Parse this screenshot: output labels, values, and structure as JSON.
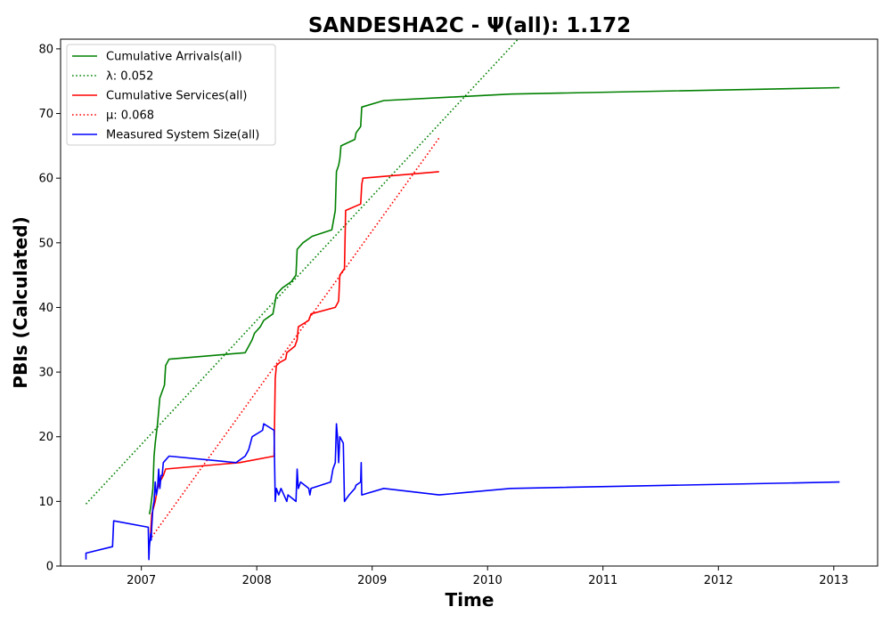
{
  "chart_data": {
    "type": "line",
    "title": "SANDESHA2C -  Ψ(all): 1.172",
    "xlabel": "Time",
    "ylabel": "PBIs (Calculated)",
    "xlim": [
      2006.3,
      2013.38
    ],
    "ylim": [
      0,
      81.5
    ],
    "xticks": [
      2007,
      2008,
      2009,
      2010,
      2011,
      2012,
      2013
    ],
    "yticks": [
      0,
      10,
      20,
      30,
      40,
      50,
      60,
      70,
      80
    ],
    "grid": false,
    "legend_position": "top-left",
    "series": [
      {
        "name": "Cumulative Arrivals(all)",
        "color": "#008000",
        "style": "solid",
        "points": [
          [
            2007.07,
            8
          ],
          [
            2007.08,
            9
          ],
          [
            2007.1,
            12
          ],
          [
            2007.11,
            17
          ],
          [
            2007.12,
            19
          ],
          [
            2007.14,
            22
          ],
          [
            2007.15,
            24
          ],
          [
            2007.16,
            26
          ],
          [
            2007.18,
            27
          ],
          [
            2007.2,
            28
          ],
          [
            2007.21,
            31
          ],
          [
            2007.24,
            32
          ],
          [
            2007.9,
            33
          ],
          [
            2007.93,
            34
          ],
          [
            2007.96,
            35
          ],
          [
            2007.98,
            36
          ],
          [
            2008.03,
            37
          ],
          [
            2008.06,
            38
          ],
          [
            2008.14,
            39
          ],
          [
            2008.15,
            40
          ],
          [
            2008.16,
            41
          ],
          [
            2008.17,
            42
          ],
          [
            2008.22,
            43
          ],
          [
            2008.3,
            44
          ],
          [
            2008.34,
            45
          ],
          [
            2008.35,
            49
          ],
          [
            2008.4,
            50
          ],
          [
            2008.48,
            51
          ],
          [
            2008.65,
            52
          ],
          [
            2008.67,
            54
          ],
          [
            2008.68,
            55
          ],
          [
            2008.69,
            61
          ],
          [
            2008.71,
            62
          ],
          [
            2008.72,
            63
          ],
          [
            2008.73,
            65
          ],
          [
            2008.85,
            66
          ],
          [
            2008.86,
            67
          ],
          [
            2008.9,
            68
          ],
          [
            2008.91,
            71
          ],
          [
            2009.1,
            72
          ],
          [
            2010.2,
            73
          ],
          [
            2013.05,
            74
          ]
        ]
      },
      {
        "name": "λ: 0.052",
        "color": "#008000",
        "style": "dotted",
        "points": [
          [
            2006.52,
            9.6
          ],
          [
            2010.29,
            82
          ]
        ]
      },
      {
        "name": "Cumulative Services(all)",
        "color": "#ff0000",
        "style": "solid",
        "points": [
          [
            2007.08,
            5
          ],
          [
            2007.09,
            8
          ],
          [
            2007.12,
            10
          ],
          [
            2007.14,
            12
          ],
          [
            2007.16,
            13
          ],
          [
            2007.19,
            14
          ],
          [
            2007.21,
            15
          ],
          [
            2007.85,
            16
          ],
          [
            2008.15,
            17
          ],
          [
            2008.16,
            29
          ],
          [
            2008.17,
            31
          ],
          [
            2008.2,
            31.5
          ],
          [
            2008.25,
            32
          ],
          [
            2008.26,
            33
          ],
          [
            2008.33,
            34
          ],
          [
            2008.35,
            35
          ],
          [
            2008.36,
            37
          ],
          [
            2008.45,
            38
          ],
          [
            2008.47,
            39
          ],
          [
            2008.68,
            40
          ],
          [
            2008.71,
            41
          ],
          [
            2008.72,
            45
          ],
          [
            2008.76,
            46
          ],
          [
            2008.77,
            55
          ],
          [
            2008.9,
            56
          ],
          [
            2008.91,
            59
          ],
          [
            2008.92,
            60
          ],
          [
            2009.58,
            61
          ]
        ]
      },
      {
        "name": "μ: 0.068",
        "color": "#ff0000",
        "style": "dotted",
        "points": [
          [
            2007.09,
            4.5
          ],
          [
            2009.58,
            66.2
          ]
        ]
      },
      {
        "name": "Measured System Size(all)",
        "color": "#0000ff",
        "style": "solid",
        "points": [
          [
            2006.52,
            1
          ],
          [
            2006.52,
            2
          ],
          [
            2006.75,
            3
          ],
          [
            2006.76,
            7
          ],
          [
            2007.06,
            6
          ],
          [
            2007.065,
            1
          ],
          [
            2007.07,
            3
          ],
          [
            2007.075,
            4
          ],
          [
            2007.08,
            5
          ],
          [
            2007.085,
            4
          ],
          [
            2007.09,
            6
          ],
          [
            2007.1,
            9
          ],
          [
            2007.11,
            10
          ],
          [
            2007.12,
            13
          ],
          [
            2007.13,
            11
          ],
          [
            2007.14,
            12
          ],
          [
            2007.15,
            15
          ],
          [
            2007.16,
            12
          ],
          [
            2007.17,
            14
          ],
          [
            2007.18,
            14
          ],
          [
            2007.19,
            16
          ],
          [
            2007.24,
            17
          ],
          [
            2007.82,
            16
          ],
          [
            2007.9,
            17
          ],
          [
            2007.93,
            18
          ],
          [
            2007.96,
            20
          ],
          [
            2008.05,
            21
          ],
          [
            2008.06,
            22
          ],
          [
            2008.15,
            21
          ],
          [
            2008.16,
            10
          ],
          [
            2008.17,
            12
          ],
          [
            2008.19,
            11
          ],
          [
            2008.21,
            12
          ],
          [
            2008.26,
            10
          ],
          [
            2008.27,
            11
          ],
          [
            2008.34,
            10
          ],
          [
            2008.35,
            15
          ],
          [
            2008.36,
            12
          ],
          [
            2008.38,
            13
          ],
          [
            2008.45,
            12
          ],
          [
            2008.46,
            11
          ],
          [
            2008.47,
            12
          ],
          [
            2008.64,
            13
          ],
          [
            2008.66,
            15
          ],
          [
            2008.68,
            16
          ],
          [
            2008.69,
            22
          ],
          [
            2008.7,
            20
          ],
          [
            2008.71,
            16
          ],
          [
            2008.72,
            20
          ],
          [
            2008.75,
            19
          ],
          [
            2008.76,
            10
          ],
          [
            2008.8,
            11
          ],
          [
            2008.85,
            12
          ],
          [
            2008.86,
            12.5
          ],
          [
            2008.9,
            13
          ],
          [
            2008.905,
            16
          ],
          [
            2008.91,
            11
          ],
          [
            2009.1,
            12
          ],
          [
            2009.58,
            11
          ],
          [
            2010.2,
            12
          ],
          [
            2013.05,
            13
          ]
        ]
      }
    ]
  }
}
